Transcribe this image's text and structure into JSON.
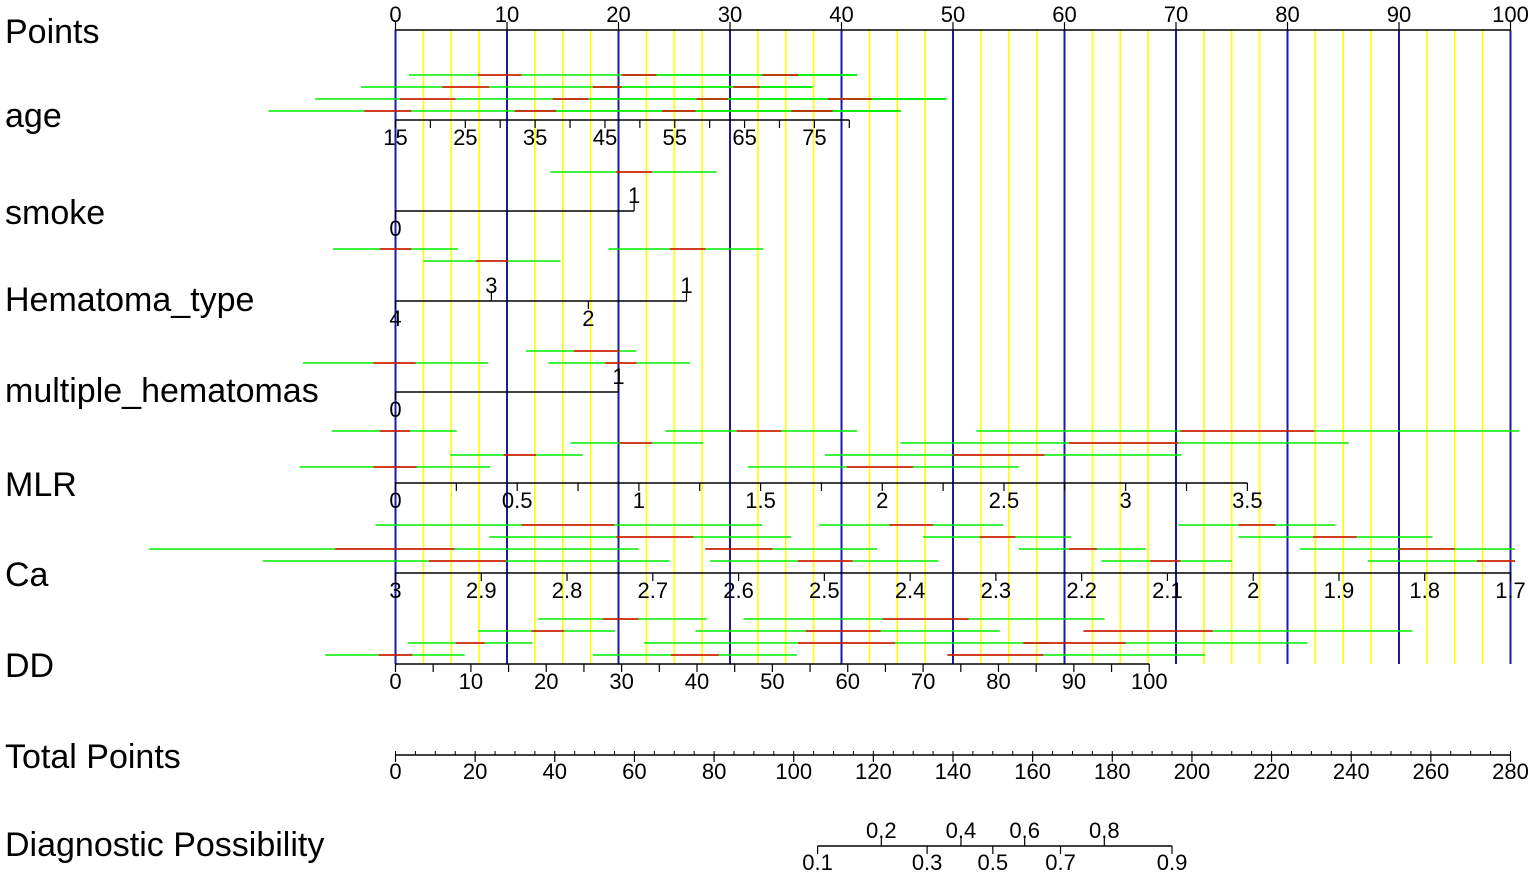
{
  "chart_data": {
    "type": "nomogram",
    "colors": {
      "major_grid": "#1a1aa8",
      "minor_grid": "#ffff00",
      "ci_line": "#00ee00",
      "center_line": "#ee0000",
      "axis": "#000000"
    },
    "points_axis": {
      "label": "Points",
      "range": [
        0,
        100
      ],
      "tick_labels": [
        "0",
        "10",
        "20",
        "30",
        "40",
        "50",
        "60",
        "70",
        "80",
        "90",
        "100"
      ],
      "major_grid_points": [
        0,
        10,
        20,
        30,
        40,
        50,
        60,
        70,
        80,
        90,
        100
      ],
      "minor_grid_points": [
        2.5,
        5,
        7.5,
        12.5,
        15,
        17.5,
        22.5,
        25,
        27.5,
        32.5,
        35,
        37.5,
        42.5,
        45,
        47.5,
        52.5,
        55,
        57.5,
        62.5,
        65,
        67.5,
        72.5,
        75,
        77.5,
        82.5,
        85,
        87.5,
        92.5,
        95,
        97.5
      ]
    },
    "variables": [
      {
        "name": "age",
        "scale": [
          {
            "value": 15,
            "points": 0
          },
          {
            "value": 80,
            "points": 40.7
          }
        ],
        "tick_values": [
          15,
          20,
          25,
          30,
          35,
          40,
          45,
          50,
          55,
          60,
          65,
          70,
          75,
          80
        ],
        "labels": [
          {
            "text": "15",
            "value": 15,
            "side": "below"
          },
          {
            "text": "25",
            "value": 25,
            "side": "below"
          },
          {
            "text": "35",
            "value": 35,
            "side": "below"
          },
          {
            "text": "45",
            "value": 45,
            "side": "below"
          },
          {
            "text": "55",
            "value": 55,
            "side": "below"
          },
          {
            "text": "65",
            "value": 65,
            "side": "below"
          },
          {
            "text": "75",
            "value": 75,
            "side": "below"
          }
        ],
        "intervals": [
          {
            "lo": 1.2,
            "mid_lo": 7.4,
            "mid_hi": 11.3,
            "hi": 41.4,
            "row": 0
          },
          {
            "lo": 20.3,
            "mid_lo": 20.3,
            "mid_hi": 23.4,
            "hi": 41.4,
            "row": 0
          },
          {
            "lo": 32.9,
            "mid_lo": 32.9,
            "mid_hi": 36.1,
            "hi": 41.4,
            "row": 0
          },
          {
            "lo": -3.1,
            "mid_lo": 4.2,
            "mid_hi": 8.4,
            "hi": 37.4,
            "row": 1
          },
          {
            "lo": 17.7,
            "mid_lo": 17.7,
            "mid_hi": 20.3,
            "hi": 37.4,
            "row": 1
          },
          {
            "lo": 30.3,
            "mid_lo": 30.3,
            "mid_hi": 32.7,
            "hi": 37.4,
            "row": 1
          },
          {
            "lo": -7.2,
            "mid_lo": 0.4,
            "mid_hi": 5.4,
            "hi": 49.4,
            "row": 2
          },
          {
            "lo": 14.1,
            "mid_lo": 14.1,
            "mid_hi": 17.3,
            "hi": 49.4,
            "row": 2
          },
          {
            "lo": 27.0,
            "mid_lo": 27.0,
            "mid_hi": 29.8,
            "hi": 49.4,
            "row": 2
          },
          {
            "lo": 38.8,
            "mid_lo": 38.8,
            "mid_hi": 42.7,
            "hi": 49.4,
            "row": 2
          },
          {
            "lo": -11.4,
            "mid_lo": -2.8,
            "mid_hi": 1.4,
            "hi": 45.3,
            "row": 3
          },
          {
            "lo": 10.7,
            "mid_lo": 10.7,
            "mid_hi": 14.4,
            "hi": 45.3,
            "row": 3
          },
          {
            "lo": 23.9,
            "mid_lo": 23.9,
            "mid_hi": 26.9,
            "hi": 45.3,
            "row": 3
          },
          {
            "lo": 35.5,
            "mid_lo": 35.5,
            "mid_hi": 39.2,
            "hi": 45.3,
            "row": 3
          }
        ]
      },
      {
        "name": "smoke",
        "scale": [
          {
            "value": 0,
            "points": 0
          },
          {
            "value": 1,
            "points": 21.4
          }
        ],
        "tick_values": [
          0,
          1
        ],
        "labels": [
          {
            "text": "1",
            "value": 1,
            "side": "above"
          },
          {
            "text": "0",
            "value": 0,
            "side": "below"
          }
        ],
        "intervals": [
          {
            "lo": 13.9,
            "mid_lo": 19.8,
            "mid_hi": 23.0,
            "hi": 28.8,
            "row": 0
          }
        ]
      },
      {
        "name": "Hematoma_type",
        "scale": [
          {
            "value": 4,
            "points": 0
          },
          {
            "value": 3,
            "points": 8.6
          },
          {
            "value": 2,
            "points": 17.3
          },
          {
            "value": 1,
            "points": 26.1
          }
        ],
        "tick_values": [
          4,
          3,
          2,
          1
        ],
        "labels": [
          {
            "text": "3",
            "value": 3,
            "side": "above"
          },
          {
            "text": "1",
            "value": 1,
            "side": "above"
          },
          {
            "text": "4",
            "value": 4,
            "side": "below"
          },
          {
            "text": "2",
            "value": 2,
            "side": "below"
          }
        ],
        "intervals": [
          {
            "lo": -5.6,
            "mid_lo": -1.4,
            "mid_hi": 1.4,
            "hi": 5.6,
            "row": 0
          },
          {
            "lo": 19.1,
            "mid_lo": 24.6,
            "mid_hi": 27.8,
            "hi": 33.0,
            "row": 0
          },
          {
            "lo": 2.5,
            "mid_lo": 7.2,
            "mid_hi": 10.1,
            "hi": 14.8,
            "row": 1
          }
        ]
      },
      {
        "name": "multiple_hematomas",
        "scale": [
          {
            "value": 0,
            "points": 0
          },
          {
            "value": 1,
            "points": 20.0
          }
        ],
        "tick_values": [
          0,
          1
        ],
        "labels": [
          {
            "text": "1",
            "value": 1,
            "side": "above"
          },
          {
            "text": "0",
            "value": 0,
            "side": "below"
          }
        ],
        "intervals": [
          {
            "lo": -8.3,
            "mid_lo": -2.0,
            "mid_hi": 1.8,
            "hi": 8.3,
            "row": 2
          },
          {
            "lo": 11.7,
            "mid_lo": 16.0,
            "mid_hi": 20.1,
            "hi": 21.6,
            "row": 1
          },
          {
            "lo": 13.7,
            "mid_lo": 18.8,
            "mid_hi": 21.6,
            "hi": 26.4,
            "row": 2
          }
        ]
      },
      {
        "name": "MLR",
        "scale": [
          {
            "value": 0,
            "points": 0
          },
          {
            "value": 3.5,
            "points": 76.4
          }
        ],
        "tick_values": [
          0,
          0.25,
          0.5,
          0.75,
          1,
          1.25,
          1.5,
          1.75,
          2,
          2.25,
          2.5,
          2.75,
          3,
          3.25,
          3.5
        ],
        "labels": [
          {
            "text": "0",
            "value": 0,
            "side": "below"
          },
          {
            "text": "0.5",
            "value": 0.5,
            "side": "below"
          },
          {
            "text": "1",
            "value": 1,
            "side": "below"
          },
          {
            "text": "1.5",
            "value": 1.5,
            "side": "below"
          },
          {
            "text": "2",
            "value": 2,
            "side": "below"
          },
          {
            "text": "2.5",
            "value": 2.5,
            "side": "below"
          },
          {
            "text": "3",
            "value": 3,
            "side": "below"
          },
          {
            "text": "3.5",
            "value": 3.5,
            "side": "below"
          }
        ],
        "intervals": [
          {
            "lo": -5.7,
            "mid_lo": -1.4,
            "mid_hi": 1.3,
            "hi": 5.5,
            "row": 0
          },
          {
            "lo": 24.2,
            "mid_lo": 30.6,
            "mid_hi": 34.6,
            "hi": 41.4,
            "row": 0
          },
          {
            "lo": 52.1,
            "mid_lo": 70.4,
            "mid_hi": 82.4,
            "hi": 100.8,
            "row": 0
          },
          {
            "lo": 15.7,
            "mid_lo": 20.1,
            "mid_hi": 23.0,
            "hi": 27.6,
            "row": 1
          },
          {
            "lo": 45.3,
            "mid_lo": 60.4,
            "mid_hi": 70.2,
            "hi": 85.5,
            "row": 1
          },
          {
            "lo": 4.9,
            "mid_lo": 9.7,
            "mid_hi": 12.6,
            "hi": 16.8,
            "row": 2
          },
          {
            "lo": 38.5,
            "mid_lo": 50.0,
            "mid_hi": 58.2,
            "hi": 70.5,
            "row": 2
          },
          {
            "lo": -8.6,
            "mid_lo": -2.0,
            "mid_hi": 1.9,
            "hi": 8.5,
            "row": 3
          },
          {
            "lo": 31.6,
            "mid_lo": 40.5,
            "mid_hi": 46.4,
            "hi": 55.9,
            "row": 3
          }
        ]
      },
      {
        "name": "Ca",
        "scale": [
          {
            "value": 3,
            "points": 0
          },
          {
            "value": 1.7,
            "points": 100
          }
        ],
        "tick_values": [
          3,
          2.9,
          2.8,
          2.7,
          2.6,
          2.5,
          2.4,
          2.3,
          2.2,
          2.1,
          2,
          1.9,
          1.8,
          1.7
        ],
        "labels": [
          {
            "text": "3",
            "value": 3,
            "side": "below"
          },
          {
            "text": "2.9",
            "value": 2.9,
            "side": "below"
          },
          {
            "text": "2.8",
            "value": 2.8,
            "side": "below"
          },
          {
            "text": "2.7",
            "value": 2.7,
            "side": "below"
          },
          {
            "text": "2.6",
            "value": 2.6,
            "side": "below"
          },
          {
            "text": "2.5",
            "value": 2.5,
            "side": "below"
          },
          {
            "text": "2.4",
            "value": 2.4,
            "side": "below"
          },
          {
            "text": "2.3",
            "value": 2.3,
            "side": "below"
          },
          {
            "text": "2.2",
            "value": 2.2,
            "side": "below"
          },
          {
            "text": "2.1",
            "value": 2.1,
            "side": "below"
          },
          {
            "text": "2",
            "value": 2,
            "side": "below"
          },
          {
            "text": "1.9",
            "value": 1.9,
            "side": "below"
          },
          {
            "text": "1.8",
            "value": 1.8,
            "side": "below"
          },
          {
            "text": "1.7",
            "value": 1.7,
            "side": "below"
          }
        ],
        "intervals": [
          {
            "lo": -1.8,
            "mid_lo": 11.3,
            "mid_hi": 19.6,
            "hi": 32.9,
            "row": 0
          },
          {
            "lo": 38.0,
            "mid_lo": 44.3,
            "mid_hi": 48.2,
            "hi": 54.5,
            "row": 0
          },
          {
            "lo": 70.2,
            "mid_lo": 75.6,
            "mid_hi": 78.9,
            "hi": 84.3,
            "row": 0
          },
          {
            "lo": 8.4,
            "mid_lo": 19.8,
            "mid_hi": 26.7,
            "hi": 35.5,
            "row": 1
          },
          {
            "lo": 47.3,
            "mid_lo": 52.4,
            "mid_hi": 55.6,
            "hi": 60.6,
            "row": 1
          },
          {
            "lo": 75.6,
            "mid_lo": 82.3,
            "mid_hi": 86.2,
            "hi": 93.0,
            "row": 1
          },
          {
            "lo": -22.1,
            "mid_lo": -5.4,
            "mid_hi": 5.3,
            "hi": 21.8,
            "row": 2
          },
          {
            "lo": 27.8,
            "mid_lo": 27.8,
            "mid_hi": 33.8,
            "hi": 43.2,
            "row": 2
          },
          {
            "lo": 55.9,
            "mid_lo": 60.4,
            "mid_hi": 62.9,
            "hi": 67.3,
            "row": 2
          },
          {
            "lo": 81.1,
            "mid_lo": 90.0,
            "mid_hi": 95.0,
            "hi": 100.4,
            "row": 2
          },
          {
            "lo": -11.9,
            "mid_lo": 3.0,
            "mid_hi": 9.9,
            "hi": 24.6,
            "row": 3
          },
          {
            "lo": 28.2,
            "mid_lo": 36.1,
            "mid_hi": 41.0,
            "hi": 48.7,
            "row": 3
          },
          {
            "lo": 63.3,
            "mid_lo": 67.7,
            "mid_hi": 70.4,
            "hi": 75.0,
            "row": 3
          },
          {
            "lo": 87.2,
            "mid_lo": 97.0,
            "mid_hi": 100.4,
            "hi": 100.4,
            "row": 3
          }
        ]
      },
      {
        "name": "DD",
        "scale": [
          {
            "value": 0,
            "points": 0
          },
          {
            "value": 100,
            "points": 67.6
          }
        ],
        "tick_values": [
          0,
          5,
          10,
          15,
          20,
          25,
          30,
          35,
          40,
          45,
          50,
          55,
          60,
          65,
          70,
          75,
          80,
          85,
          90,
          95,
          100
        ],
        "labels": [
          {
            "text": "0",
            "value": 0,
            "side": "below"
          },
          {
            "text": "10",
            "value": 10,
            "side": "below"
          },
          {
            "text": "20",
            "value": 20,
            "side": "below"
          },
          {
            "text": "30",
            "value": 30,
            "side": "below"
          },
          {
            "text": "40",
            "value": 40,
            "side": "below"
          },
          {
            "text": "50",
            "value": 50,
            "side": "below"
          },
          {
            "text": "60",
            "value": 60,
            "side": "below"
          },
          {
            "text": "70",
            "value": 70,
            "side": "below"
          },
          {
            "text": "80",
            "value": 80,
            "side": "below"
          },
          {
            "text": "90",
            "value": 90,
            "side": "below"
          },
          {
            "text": "100",
            "value": 100,
            "side": "below"
          }
        ],
        "intervals": [
          {
            "lo": 12.8,
            "mid_lo": 18.6,
            "mid_hi": 21.8,
            "hi": 27.9,
            "row": 0
          },
          {
            "lo": 31.2,
            "mid_lo": 43.7,
            "mid_hi": 51.4,
            "hi": 63.6,
            "row": 0
          },
          {
            "lo": 7.4,
            "mid_lo": 12.2,
            "mid_hi": 15.1,
            "hi": 19.7,
            "row": 1
          },
          {
            "lo": 26.9,
            "mid_lo": 36.8,
            "mid_hi": 43.5,
            "hi": 54.2,
            "row": 1
          },
          {
            "lo": 61.7,
            "mid_lo": 61.7,
            "mid_hi": 73.3,
            "hi": 91.2,
            "row": 1
          },
          {
            "lo": 1.1,
            "mid_lo": 5.4,
            "mid_hi": 8.0,
            "hi": 12.3,
            "row": 2
          },
          {
            "lo": 22.3,
            "mid_lo": 36.1,
            "mid_hi": 44.8,
            "hi": 58.7,
            "row": 2
          },
          {
            "lo": 56.3,
            "mid_lo": 56.3,
            "mid_hi": 65.5,
            "hi": 81.8,
            "row": 2
          },
          {
            "lo": -6.3,
            "mid_lo": -1.5,
            "mid_hi": 1.5,
            "hi": 6.2,
            "row": 3
          },
          {
            "lo": 17.7,
            "mid_lo": 24.7,
            "mid_hi": 29.0,
            "hi": 36.0,
            "row": 3
          },
          {
            "lo": 49.5,
            "mid_lo": 49.5,
            "mid_hi": 58.1,
            "hi": 72.6,
            "row": 3
          }
        ]
      }
    ],
    "total_points": {
      "label": "Total Points",
      "range": [
        0,
        280
      ],
      "tick_labels": [
        "0",
        "20",
        "40",
        "60",
        "80",
        "100",
        "120",
        "140",
        "160",
        "180",
        "200",
        "220",
        "240",
        "260",
        "280"
      ],
      "minor_tick_step": 5
    },
    "diagnostic_possibility": {
      "label": "Diagnostic Possibility",
      "range": [
        0.1,
        0.9
      ],
      "ticks": [
        {
          "text": "0.1",
          "total_points": 106,
          "side": "below"
        },
        {
          "text": "0.2",
          "total_points": 122,
          "side": "above"
        },
        {
          "text": "0.3",
          "total_points": 133.5,
          "side": "below"
        },
        {
          "text": "0.4",
          "total_points": 142,
          "side": "above"
        },
        {
          "text": "0.5",
          "total_points": 150,
          "side": "below"
        },
        {
          "text": "0.6",
          "total_points": 158,
          "side": "above"
        },
        {
          "text": "0.7",
          "total_points": 167,
          "side": "below"
        },
        {
          "text": "0.8",
          "total_points": 178,
          "side": "above"
        },
        {
          "text": "0.9",
          "total_points": 195,
          "side": "below"
        }
      ]
    }
  }
}
